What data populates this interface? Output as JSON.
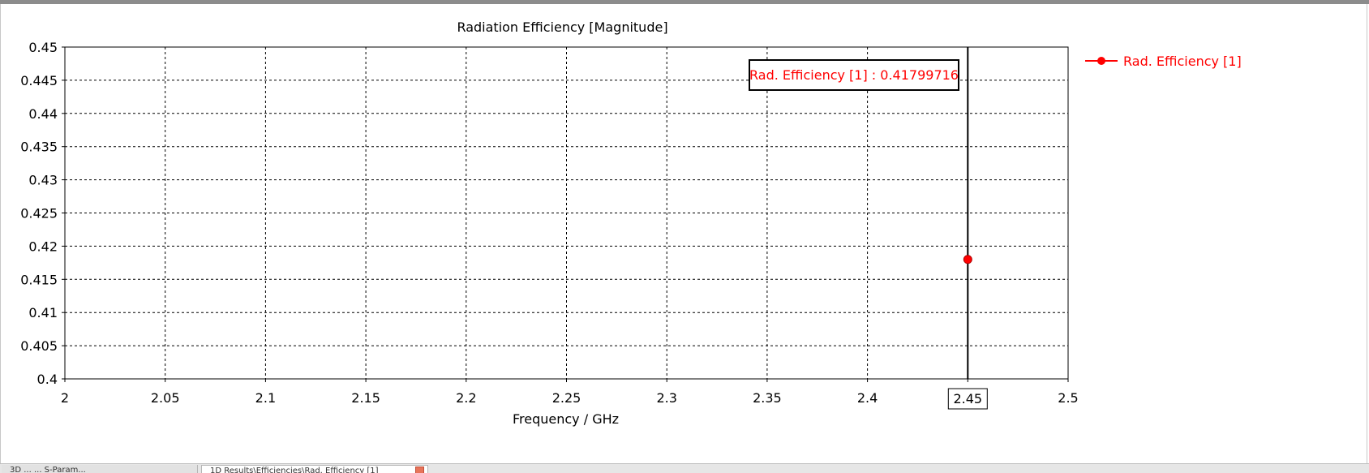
{
  "chart_data": {
    "type": "line",
    "title": "Radiation Efficiency [Magnitude]",
    "xlabel": "Frequency / GHz",
    "ylabel": "",
    "xlim": [
      2,
      2.5
    ],
    "ylim": [
      0.4,
      0.45
    ],
    "x_ticks": [
      "2",
      "2.05",
      "2.1",
      "2.15",
      "2.2",
      "2.25",
      "2.3",
      "2.35",
      "2.4",
      "2.45",
      "2.5"
    ],
    "y_ticks": [
      "0.45",
      "0.445",
      "0.44",
      "0.435",
      "0.43",
      "0.425",
      "0.42",
      "0.415",
      "0.41",
      "0.405",
      "0.4"
    ],
    "grid": true,
    "legend_position": "right",
    "series": [
      {
        "name": "Rad. Efficiency [1]",
        "color": "#ff0000",
        "x": [
          2.45
        ],
        "y": [
          0.41799716
        ]
      }
    ],
    "marker": {
      "x": 2.45,
      "x_label": "2.45",
      "annotation": "Rad. Efficiency [1] : 0.41799716"
    }
  },
  "tabs": [
    {
      "label": "3D    ...   ...  S-Param..."
    },
    {
      "label": "1D Results\\Efficiencies\\Rad. Efficiency [1]"
    }
  ]
}
